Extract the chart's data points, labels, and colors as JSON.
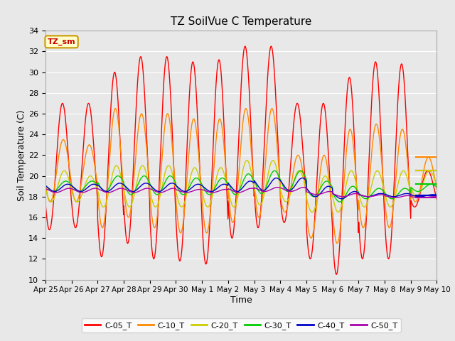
{
  "title": "TZ SoilVue C Temperature",
  "xlabel": "Time",
  "ylabel": "Soil Temperature (C)",
  "ylim": [
    10,
    34
  ],
  "yticks": [
    10,
    12,
    14,
    16,
    18,
    20,
    22,
    24,
    26,
    28,
    30,
    32,
    34
  ],
  "bg_color": "#e8e8e8",
  "plot_bg": "#e8e8e8",
  "legend_label": "TZ_sm",
  "legend_bg": "#ffffcc",
  "legend_border": "#cc9900",
  "series_colors": {
    "C-05_T": "#ff0000",
    "C-10_T": "#ff8800",
    "C-20_T": "#cccc00",
    "C-30_T": "#00cc00",
    "C-40_T": "#0000cc",
    "C-50_T": "#aa00aa"
  },
  "xtick_labels": [
    "Apr 25",
    "Apr 26",
    "Apr 27",
    "Apr 28",
    "Apr 29",
    "Apr 30",
    "May 1",
    "May 2",
    "May 3",
    "May 4",
    "May 5",
    "May 6",
    "May 7",
    "May 8",
    "May 9",
    "May 10"
  ],
  "peak_vals_05": [
    27.0,
    27.0,
    30.0,
    31.5,
    31.5,
    31.0,
    31.2,
    32.5,
    32.5,
    27.0,
    27.0,
    29.5,
    31.0,
    30.8,
    20.5
  ],
  "trough_vals_05": [
    14.8,
    15.0,
    12.2,
    13.5,
    12.0,
    11.8,
    11.5,
    14.0,
    15.0,
    15.5,
    12.0,
    10.5,
    12.0,
    12.0,
    17.0
  ],
  "peak_vals_10": [
    23.5,
    23.0,
    26.5,
    26.0,
    26.0,
    25.5,
    25.5,
    26.5,
    26.5,
    22.0,
    22.0,
    24.5,
    25.0,
    24.5,
    21.8
  ],
  "trough_vals_10": [
    17.5,
    17.5,
    15.0,
    16.0,
    15.0,
    14.5,
    14.5,
    15.5,
    16.0,
    16.5,
    14.0,
    13.5,
    15.0,
    15.0,
    17.5
  ],
  "peak_vals_20": [
    20.5,
    20.0,
    21.0,
    21.0,
    21.0,
    20.8,
    20.8,
    21.5,
    21.5,
    20.5,
    20.0,
    20.5,
    20.5,
    20.5,
    20.5
  ],
  "trough_vals_20": [
    17.5,
    17.5,
    17.0,
    17.0,
    17.0,
    17.0,
    17.0,
    17.0,
    17.2,
    17.5,
    16.5,
    16.5,
    17.0,
    17.0,
    18.0
  ],
  "peak_vals_30": [
    19.5,
    19.5,
    20.0,
    20.0,
    20.0,
    19.8,
    19.8,
    20.2,
    20.5,
    20.5,
    19.5,
    19.0,
    18.8,
    18.8,
    19.2
  ],
  "trough_vals_30": [
    18.5,
    18.5,
    18.5,
    18.2,
    18.2,
    18.2,
    18.2,
    18.2,
    18.3,
    18.5,
    18.0,
    17.5,
    17.8,
    17.8,
    18.5
  ],
  "peak_vals_40": [
    19.2,
    19.2,
    19.3,
    19.3,
    19.3,
    19.2,
    19.2,
    19.5,
    19.8,
    19.8,
    19.0,
    18.5,
    18.3,
    18.3,
    18.2
  ],
  "trough_vals_40": [
    18.5,
    18.5,
    18.5,
    18.5,
    18.5,
    18.5,
    18.5,
    18.5,
    18.6,
    18.6,
    18.0,
    17.8,
    18.0,
    18.0,
    18.0
  ],
  "peak_vals_50": [
    18.8,
    18.8,
    18.8,
    18.8,
    18.8,
    18.7,
    18.7,
    18.8,
    18.9,
    18.9,
    18.5,
    18.3,
    18.2,
    18.1,
    18.0
  ],
  "trough_vals_50": [
    18.4,
    18.4,
    18.4,
    18.4,
    18.4,
    18.4,
    18.4,
    18.4,
    18.5,
    18.5,
    18.2,
    18.0,
    18.0,
    17.9,
    17.9
  ],
  "flat_end_vals": {
    "C-05_T": 20.5,
    "C-10_T": 21.8,
    "C-20_T": 20.5,
    "C-30_T": 19.2,
    "C-40_T": 18.1,
    "C-50_T": 17.95
  }
}
